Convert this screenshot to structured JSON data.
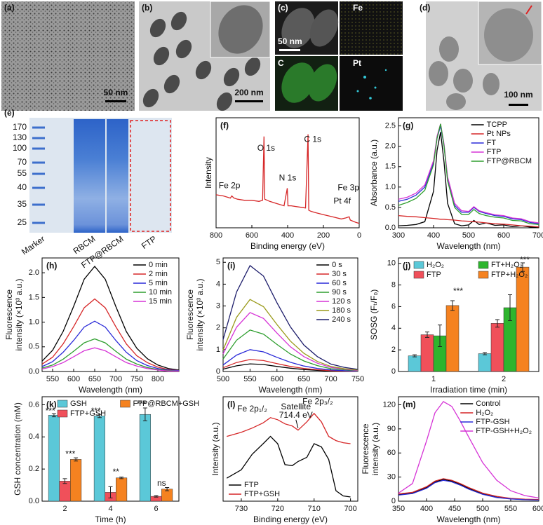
{
  "images": [
    {
      "label": "(a)",
      "scale_bar": "50 nm"
    },
    {
      "label": "(b)",
      "scale_bar": "200 nm"
    },
    {
      "label": "(c)",
      "scale_bar": "50 nm",
      "channels": [
        "Fe",
        "C",
        "Pt"
      ]
    },
    {
      "label": "(d)",
      "scale_bar": "100 nm"
    }
  ],
  "gel": {
    "label": "(e)",
    "markers": [
      "170",
      "130",
      "100",
      "70",
      "55",
      "40",
      "35",
      "25"
    ],
    "lanes": [
      "Marker",
      "RBCM",
      "FTP@RBCM",
      "FTP"
    ]
  },
  "chart_data": [
    {
      "type": "line",
      "label": "(f)",
      "xlabel": "Binding energy (eV)",
      "ylabel": "Intensity",
      "xlim": [
        800,
        0
      ],
      "xticks": [
        800,
        600,
        400,
        200,
        0
      ],
      "ylim": [
        0,
        100
      ],
      "x": [
        800,
        760,
        720,
        712,
        700,
        680,
        640,
        600,
        560,
        540,
        532,
        528,
        500,
        460,
        420,
        402,
        398,
        380,
        340,
        300,
        286,
        282,
        270,
        250,
        200,
        150,
        100,
        75,
        56,
        50,
        20,
        0
      ],
      "series": [
        {
          "name": null,
          "color": "#d62728",
          "values": [
            30,
            29,
            27,
            29,
            27,
            26,
            25,
            25,
            24,
            25,
            83,
            26,
            24,
            22,
            20,
            36,
            20,
            20,
            19,
            18,
            85,
            16,
            15,
            14,
            12,
            10,
            8,
            9,
            10,
            7,
            5,
            4
          ]
        }
      ],
      "annotations": [
        "Fe 2p",
        "O 1s",
        "N 1s",
        "C 1s",
        "Pt 4f",
        "Fe 3p"
      ]
    },
    {
      "type": "line",
      "label": "(g)",
      "xlabel": "Wavelength (nm)",
      "ylabel": "Absorbance (a.u.)",
      "xlim": [
        300,
        700
      ],
      "xticks": [
        300,
        400,
        500,
        600,
        700
      ],
      "ylim": [
        0,
        2.7
      ],
      "yticks": [
        {
          "value": 0,
          "label": "0.0"
        },
        0.5,
        {
          "value": 1,
          "label": "1.0"
        },
        1.5,
        {
          "value": 2,
          "label": "2.0"
        },
        2.5
      ],
      "legend": "upper right",
      "x": [
        300,
        325,
        350,
        375,
        400,
        410,
        420,
        430,
        440,
        460,
        480,
        500,
        515,
        530,
        550,
        575,
        600,
        625,
        650,
        675,
        700
      ],
      "series": [
        {
          "name": "TCPP",
          "color": "#000000",
          "values": [
            0.05,
            0.06,
            0.08,
            0.15,
            0.9,
            1.9,
            2.35,
            1.6,
            0.6,
            0.1,
            0.05,
            0.07,
            0.18,
            0.08,
            0.12,
            0.06,
            0.07,
            0.03,
            0.05,
            0.02,
            0.02
          ]
        },
        {
          "name": "Pt NPs",
          "color": "#d62728",
          "values": [
            0.3,
            0.28,
            0.27,
            0.25,
            0.23,
            0.22,
            0.21,
            0.21,
            0.2,
            0.19,
            0.17,
            0.16,
            0.15,
            0.14,
            0.12,
            0.1,
            0.09,
            0.07,
            0.05,
            0.04,
            0.02
          ]
        },
        {
          "name": "FT",
          "color": "#2a2ad8",
          "values": [
            0.65,
            0.7,
            0.8,
            1.0,
            1.6,
            2.2,
            2.5,
            2.0,
            1.2,
            0.55,
            0.38,
            0.38,
            0.5,
            0.4,
            0.35,
            0.3,
            0.28,
            0.22,
            0.2,
            0.13,
            0.1
          ]
        },
        {
          "name": "FTP",
          "color": "#d633d6",
          "values": [
            0.7,
            0.75,
            0.85,
            1.05,
            1.65,
            2.25,
            2.55,
            2.05,
            1.25,
            0.6,
            0.42,
            0.4,
            0.52,
            0.42,
            0.37,
            0.32,
            0.3,
            0.24,
            0.22,
            0.15,
            0.12
          ]
        },
        {
          "name": "FTP@RBCM",
          "color": "#2e9e2e",
          "values": [
            0.55,
            0.62,
            0.72,
            0.92,
            1.55,
            2.2,
            2.55,
            2.0,
            1.15,
            0.5,
            0.33,
            0.33,
            0.45,
            0.35,
            0.3,
            0.26,
            0.24,
            0.18,
            0.17,
            0.1,
            0.08
          ]
        }
      ]
    },
    {
      "type": "line",
      "label": "(h)",
      "xlabel": "Wavelength (nm)",
      "ylabel": [
        "Fluorescence",
        "intensity (×10³ a.u.)"
      ],
      "xlim": [
        525,
        850
      ],
      "xticks": [
        550,
        600,
        650,
        700,
        750,
        800
      ],
      "ylim": [
        0,
        2.3
      ],
      "yticks": [
        {
          "value": 0,
          "label": "0.0"
        },
        0.5,
        {
          "value": 1,
          "label": "1.0"
        },
        1.5,
        {
          "value": 2,
          "label": "2.0"
        }
      ],
      "legend": "upper right",
      "x": [
        525,
        550,
        575,
        600,
        625,
        650,
        675,
        700,
        725,
        750,
        775,
        800,
        825,
        850
      ],
      "series": [
        {
          "name": "0 min",
          "color": "#000000",
          "values": [
            0.21,
            0.43,
            0.81,
            1.32,
            1.87,
            2.13,
            1.87,
            1.32,
            0.81,
            0.47,
            0.26,
            0.13,
            0.06,
            0.03
          ]
        },
        {
          "name": "2 min",
          "color": "#d62728",
          "values": [
            0.15,
            0.29,
            0.56,
            0.91,
            1.29,
            1.47,
            1.29,
            0.91,
            0.56,
            0.32,
            0.18,
            0.09,
            0.04,
            0.02
          ]
        },
        {
          "name": "5 min",
          "color": "#2a2ad8",
          "values": [
            0.1,
            0.2,
            0.39,
            0.63,
            0.9,
            1.02,
            0.9,
            0.63,
            0.39,
            0.22,
            0.12,
            0.06,
            0.03,
            0.02
          ]
        },
        {
          "name": "10 min",
          "color": "#2e9e2e",
          "values": [
            0.07,
            0.13,
            0.25,
            0.41,
            0.58,
            0.66,
            0.58,
            0.41,
            0.25,
            0.15,
            0.08,
            0.04,
            0.02,
            0.01
          ]
        },
        {
          "name": "15 min",
          "color": "#d633d6",
          "values": [
            0.05,
            0.1,
            0.18,
            0.3,
            0.42,
            0.48,
            0.42,
            0.3,
            0.18,
            0.11,
            0.06,
            0.03,
            0.01,
            0.01
          ]
        }
      ]
    },
    {
      "type": "line",
      "label": "(i)",
      "xlabel": "Wavelength (nm)",
      "ylabel": [
        "Fluorescence",
        "intensity (×10³ a.u.)"
      ],
      "xlim": [
        500,
        750
      ],
      "xticks": [
        500,
        550,
        600,
        650,
        700,
        750
      ],
      "ylim": [
        0,
        5.2
      ],
      "yticks": [
        0,
        1,
        2,
        3,
        4,
        5
      ],
      "legend": "upper right",
      "x": [
        500,
        525,
        550,
        575,
        600,
        625,
        650,
        675,
        700,
        725,
        750
      ],
      "series": [
        {
          "name": "0 s",
          "color": "#000000",
          "values": [
            0.11,
            0.26,
            0.35,
            0.32,
            0.23,
            0.15,
            0.09,
            0.05,
            0.02,
            0.01,
            0.01
          ]
        },
        {
          "name": "30 s",
          "color": "#d62728",
          "values": [
            0.17,
            0.41,
            0.55,
            0.5,
            0.36,
            0.23,
            0.14,
            0.08,
            0.04,
            0.02,
            0.01
          ]
        },
        {
          "name": "60 s",
          "color": "#2a2ad8",
          "values": [
            0.3,
            0.75,
            1.0,
            0.9,
            0.65,
            0.42,
            0.25,
            0.14,
            0.07,
            0.04,
            0.02
          ]
        },
        {
          "name": "90 s",
          "color": "#2e9e2e",
          "values": [
            0.57,
            1.43,
            1.9,
            1.71,
            1.24,
            0.8,
            0.48,
            0.27,
            0.13,
            0.08,
            0.04
          ]
        },
        {
          "name": "120 s",
          "color": "#d633d6",
          "values": [
            0.81,
            2.03,
            2.7,
            2.43,
            1.76,
            1.13,
            0.68,
            0.38,
            0.19,
            0.11,
            0.05
          ]
        },
        {
          "name": "180 s",
          "color": "#9a9a1a",
          "values": [
            0.99,
            2.48,
            3.3,
            2.97,
            2.15,
            1.39,
            0.83,
            0.46,
            0.23,
            0.13,
            0.07
          ]
        },
        {
          "name": "240 s",
          "color": "#1c1c6a",
          "values": [
            1.46,
            3.64,
            4.85,
            4.37,
            3.15,
            2.04,
            1.21,
            0.68,
            0.34,
            0.19,
            0.1
          ]
        }
      ]
    },
    {
      "type": "bar",
      "label": "(j)",
      "xlabel": "Irradiation time (min)",
      "ylabel": "SOSG (Fₜ/F₀)",
      "categories": [
        "1",
        "2"
      ],
      "ylim": [
        0,
        10.5
      ],
      "yticks": [
        0,
        2,
        4,
        6,
        8,
        10
      ],
      "legend": "upper left",
      "series": [
        {
          "name": "H₂O₂",
          "color": "#5bc8d8",
          "values": [
            1.45,
            1.65
          ],
          "errors": [
            0.1,
            0.1
          ]
        },
        {
          "name": "FTP",
          "color": "#f0505a",
          "values": [
            3.4,
            4.45
          ],
          "errors": [
            0.25,
            0.35
          ]
        },
        {
          "name": "FT+H₂O₂",
          "color": "#2db52d",
          "values": [
            3.3,
            5.9
          ],
          "errors": [
            1.0,
            1.2
          ]
        },
        {
          "name": "FTP+H₂O₂",
          "color": "#f58220",
          "values": [
            6.1,
            9.65
          ],
          "errors": [
            0.45,
            0.4
          ]
        }
      ],
      "annotations": [
        "***",
        "***"
      ]
    },
    {
      "type": "bar",
      "label": "(k)",
      "xlabel": "Time (h)",
      "ylabel": "GSH concentration (mM)",
      "categories": [
        "2",
        "4",
        "6"
      ],
      "ylim": [
        0,
        0.65
      ],
      "yticks": [
        {
          "value": 0,
          "label": "0.0"
        },
        0.2,
        0.4,
        0.6
      ],
      "legend": "upper left",
      "series": [
        {
          "name": "GSH",
          "color": "#5bc8d8",
          "values": [
            0.535,
            0.53,
            0.54
          ],
          "errors": [
            0.01,
            0.01,
            0.04
          ]
        },
        {
          "name": "FTP+GSH",
          "color": "#f0505a",
          "values": [
            0.125,
            0.055,
            0.03
          ],
          "errors": [
            0.015,
            0.035,
            0.005
          ]
        },
        {
          "name": "FTP@RBCM+GSH",
          "color": "#f58220",
          "values": [
            0.26,
            0.145,
            0.075
          ],
          "errors": [
            0.01,
            0.005,
            0.01
          ]
        }
      ],
      "annotations": [
        "***",
        "***",
        "***",
        "**",
        "***",
        "ns"
      ]
    },
    {
      "type": "line",
      "label": "(l)",
      "xlabel": "Binding energy (eV)",
      "ylabel": "Intensity (a.u.)",
      "xlim": [
        735,
        698
      ],
      "xticks": [
        730,
        720,
        710,
        700
      ],
      "ylim": [
        0,
        1
      ],
      "legend": "lower left",
      "x": [
        734,
        730,
        727,
        724,
        722,
        720,
        718,
        716,
        714.4,
        712,
        710,
        708,
        706,
        704,
        702,
        700
      ],
      "series": [
        {
          "name": "FTP",
          "color": "#000000",
          "values": [
            0.22,
            0.3,
            0.45,
            0.55,
            0.62,
            0.55,
            0.35,
            0.34,
            0.38,
            0.42,
            0.55,
            0.52,
            0.4,
            0.1,
            0.05,
            0.04
          ]
        },
        {
          "name": "FTP+GSH",
          "color": "#d62728",
          "values": [
            0.62,
            0.66,
            0.7,
            0.75,
            0.8,
            0.78,
            0.74,
            0.72,
            0.68,
            0.76,
            0.84,
            0.76,
            0.62,
            0.58,
            0.56,
            0.55
          ]
        }
      ],
      "annotations": [
        "Fe 2p₁/₂",
        "Satellite",
        "714.4 eV",
        "Fe 2p₃/₂"
      ]
    },
    {
      "type": "line",
      "label": "(m)",
      "xlabel": "Wavelength (nm)",
      "ylabel": [
        "Fluorescence",
        "intensity (a.u.)"
      ],
      "xlim": [
        350,
        600
      ],
      "xticks": [
        350,
        400,
        450,
        500,
        550,
        600
      ],
      "ylim": [
        0,
        130
      ],
      "yticks": [
        0,
        30,
        60,
        90,
        120
      ],
      "legend": "upper right",
      "x": [
        350,
        375,
        400,
        415,
        430,
        445,
        460,
        475,
        500,
        525,
        550,
        575,
        600
      ],
      "series": [
        {
          "name": "Control",
          "color": "#000000",
          "values": [
            8,
            10,
            17,
            24,
            27,
            25,
            21,
            16,
            9,
            5,
            3,
            2,
            1.5
          ]
        },
        {
          "name": "H₂O₂",
          "color": "#d62728",
          "values": [
            9,
            11,
            18,
            25,
            28,
            26,
            22,
            17,
            10,
            6,
            3.5,
            2.5,
            2
          ]
        },
        {
          "name": "FTP-GSH",
          "color": "#2a2ad8",
          "values": [
            7.5,
            9.5,
            16,
            23,
            26,
            24,
            20,
            15,
            8.5,
            4.5,
            2.8,
            1.8,
            1.4
          ]
        },
        {
          "name": "FTP-GSH+H₂O₂",
          "color": "#d633d6",
          "values": [
            10,
            22,
            75,
            110,
            124,
            118,
            100,
            80,
            48,
            26,
            13,
            7,
            4
          ]
        }
      ]
    }
  ]
}
